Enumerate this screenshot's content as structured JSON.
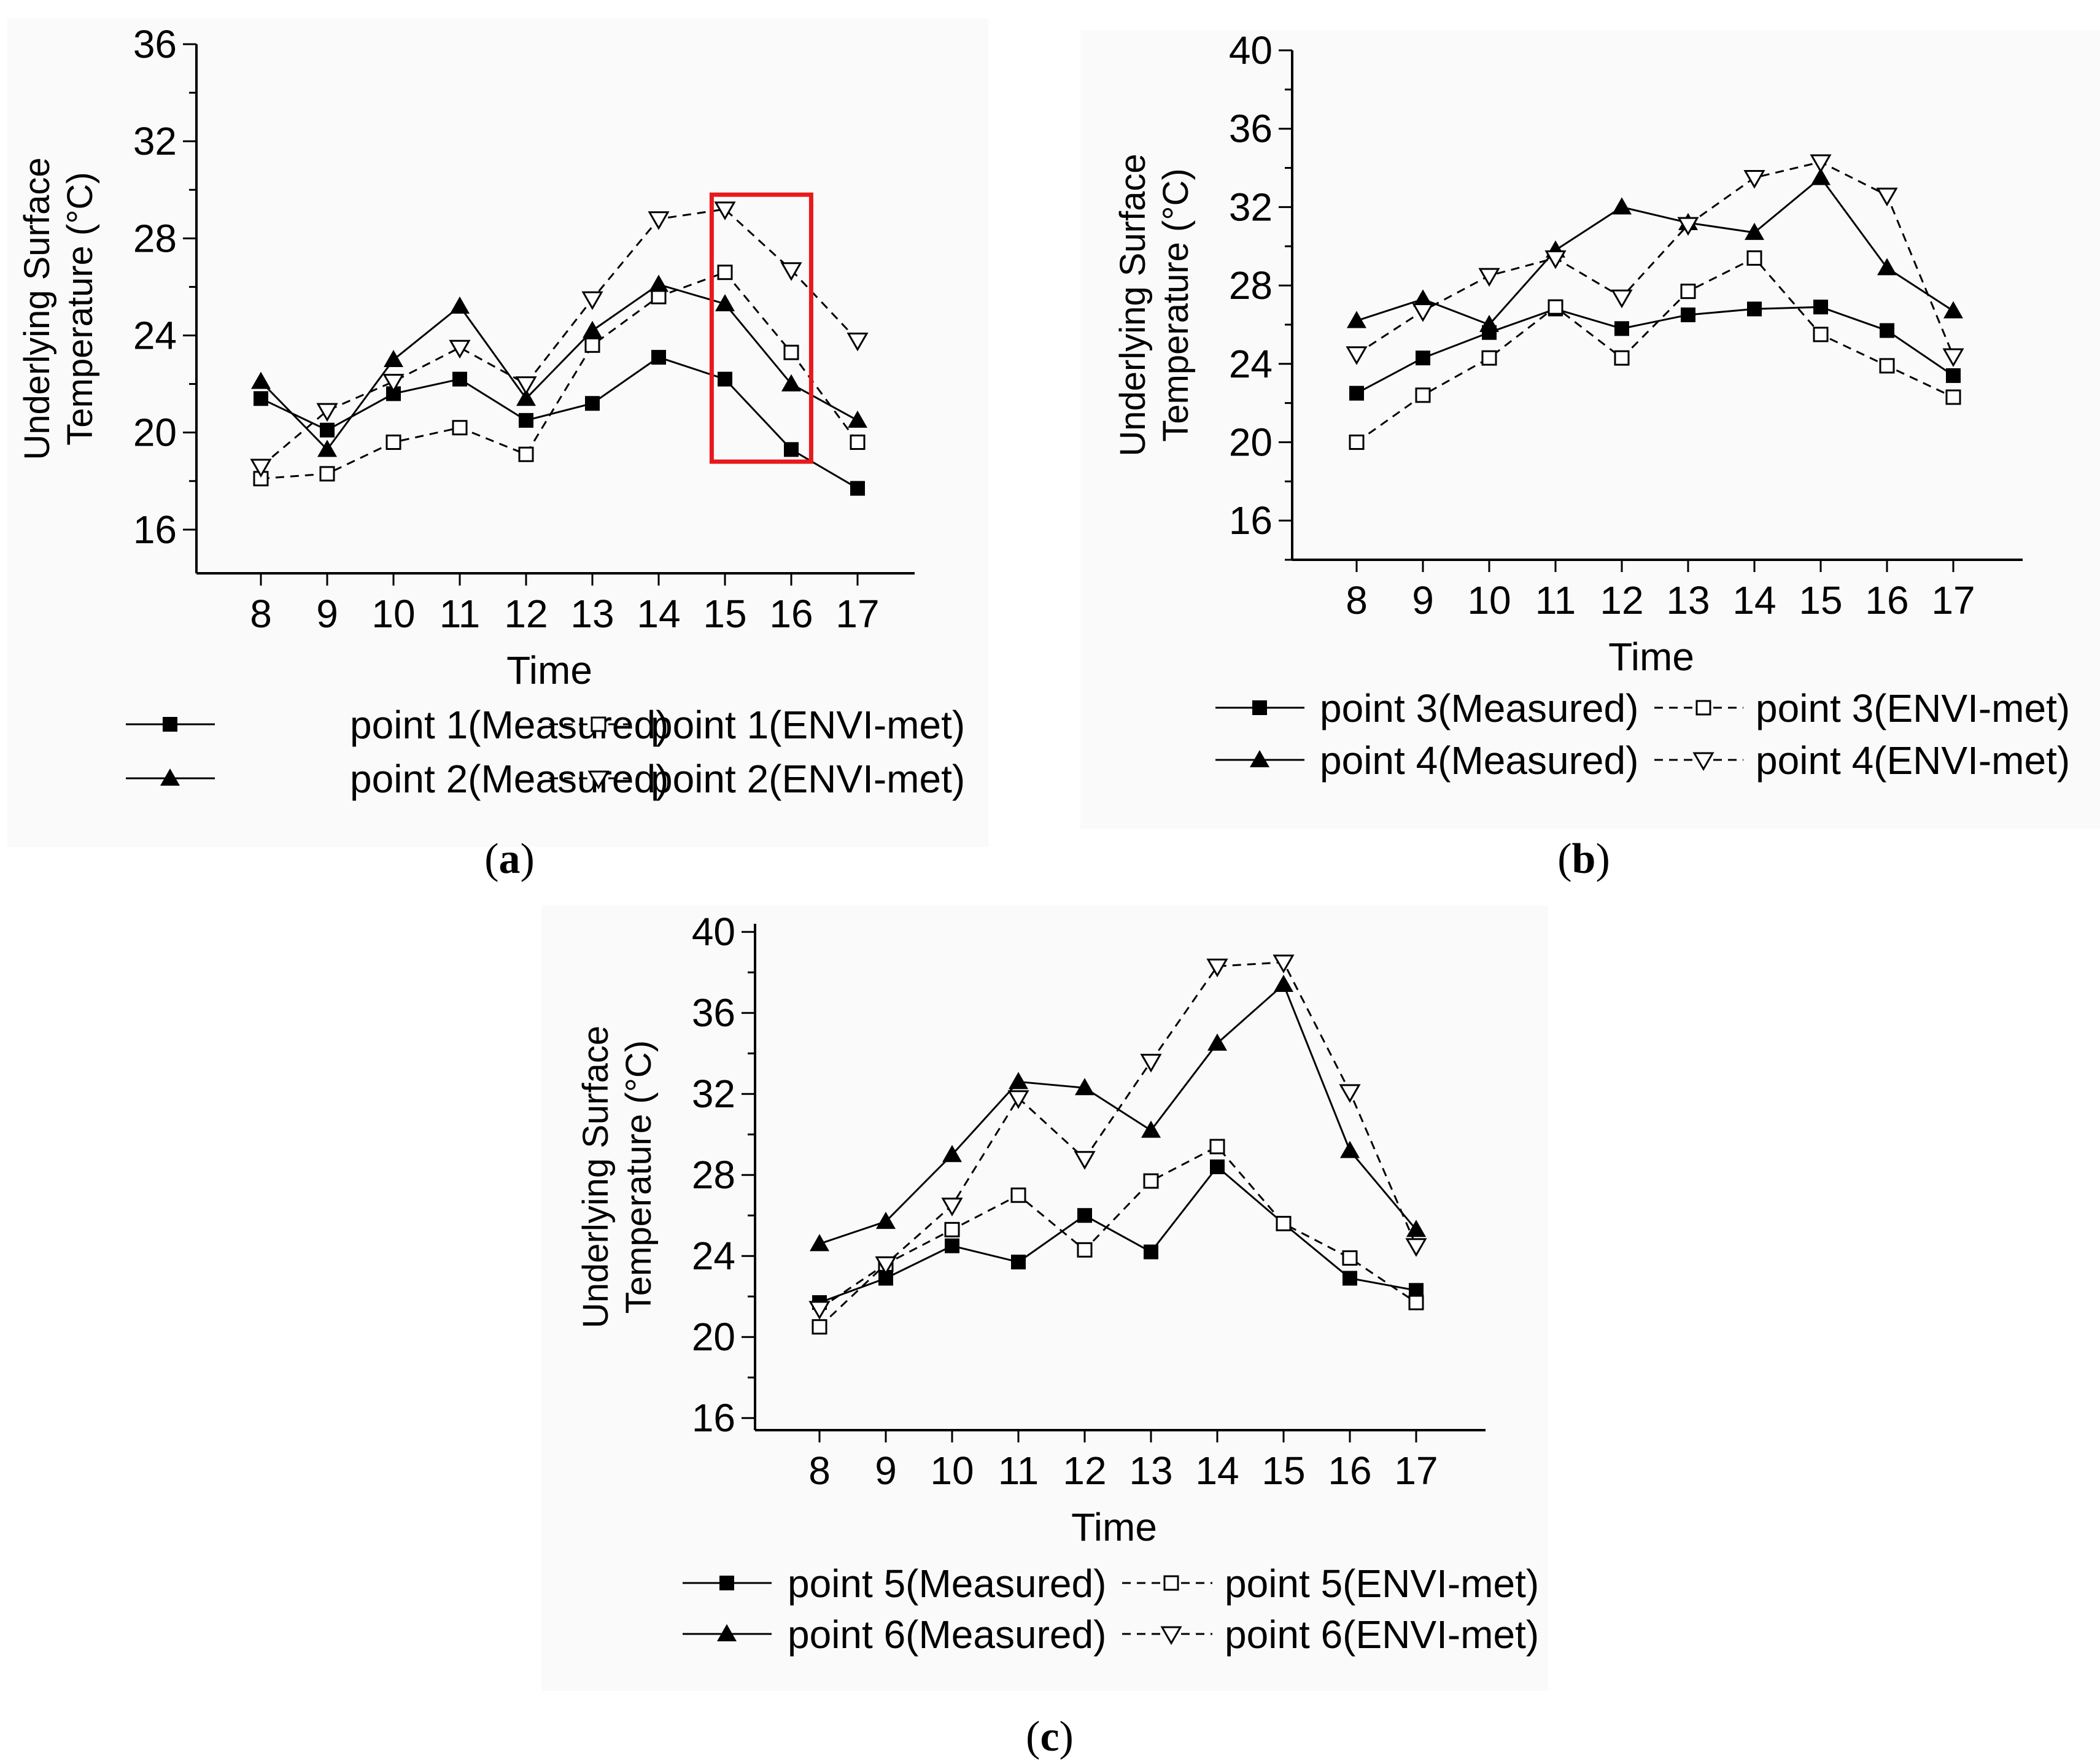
{
  "colors": {
    "line": "#000000",
    "highlight": "#e8191b",
    "panel_bg": "#fafafa"
  },
  "chart_data": [
    {
      "type": "line",
      "panel": "(a)",
      "caption_letter": "a",
      "xlabel": "Time",
      "ylabel_line1": "Underlying Surface",
      "ylabel_line2": "Temperature (°C)",
      "ylim": [
        14.2,
        36
      ],
      "yticks": [
        "16",
        "20",
        "24",
        "28",
        "32",
        "36"
      ],
      "x": [
        8,
        9,
        10,
        11,
        12,
        13,
        14,
        15,
        16,
        17
      ],
      "xticks": [
        "8",
        "9",
        "10",
        "11",
        "12",
        "13",
        "14",
        "15",
        "16",
        "17"
      ],
      "highlight_x_range": [
        14.8,
        16.3
      ],
      "highlight_y_range": [
        18.8,
        29.8
      ],
      "series": [
        {
          "name": "point 1(Measured)",
          "marker": "square-filled",
          "dash": "solid",
          "values": [
            21.4,
            20.1,
            21.6,
            22.2,
            20.5,
            21.2,
            23.1,
            22.2,
            19.3,
            17.7
          ]
        },
        {
          "name": "point 1(ENVI-met)",
          "marker": "square-open",
          "dash": "dashed",
          "values": [
            18.1,
            18.3,
            19.6,
            20.2,
            19.1,
            23.6,
            25.6,
            26.6,
            23.3,
            19.6
          ]
        },
        {
          "name": "point 2(Measured)",
          "marker": "triangle-up-filled",
          "dash": "solid",
          "values": [
            22.1,
            19.3,
            23.0,
            25.2,
            21.4,
            24.2,
            26.1,
            25.3,
            22.0,
            20.5
          ]
        },
        {
          "name": "point 2(ENVI-met)",
          "marker": "triangle-down-open",
          "dash": "dashed",
          "values": [
            18.6,
            20.9,
            22.1,
            23.5,
            22.0,
            25.5,
            28.8,
            29.2,
            26.7,
            23.8
          ]
        }
      ]
    },
    {
      "type": "line",
      "panel": "(b)",
      "caption_letter": "b",
      "xlabel": "Time",
      "ylabel_line1": "Underlying Surface",
      "ylabel_line2": "Temperature (°C)",
      "ylim": [
        14,
        40
      ],
      "yticks": [
        "16",
        "20",
        "24",
        "28",
        "32",
        "36",
        "40"
      ],
      "x": [
        8,
        9,
        10,
        11,
        12,
        13,
        14,
        15,
        16,
        17
      ],
      "xticks": [
        "8",
        "9",
        "10",
        "11",
        "12",
        "13",
        "14",
        "15",
        "16",
        "17"
      ],
      "series": [
        {
          "name": "point 3(Measured)",
          "marker": "square-filled",
          "dash": "solid",
          "values": [
            22.5,
            24.3,
            25.6,
            26.8,
            25.8,
            26.5,
            26.8,
            26.9,
            25.7,
            23.4
          ]
        },
        {
          "name": "point 3(ENVI-met)",
          "marker": "square-open",
          "dash": "dashed",
          "values": [
            20.0,
            22.4,
            24.3,
            26.9,
            24.3,
            27.7,
            29.4,
            25.5,
            23.9,
            22.3
          ]
        },
        {
          "name": "point 4(Measured)",
          "marker": "triangle-up-filled",
          "dash": "solid",
          "values": [
            26.2,
            27.3,
            26.0,
            29.8,
            32.0,
            31.2,
            30.7,
            33.5,
            28.9,
            26.7
          ]
        },
        {
          "name": "point 4(ENVI-met)",
          "marker": "triangle-down-open",
          "dash": "dashed",
          "values": [
            24.5,
            26.7,
            28.5,
            29.4,
            27.4,
            31.1,
            33.5,
            34.3,
            32.6,
            24.4
          ]
        }
      ]
    },
    {
      "type": "line",
      "panel": "(c)",
      "caption_letter": "c",
      "xlabel": "Time",
      "ylabel_line1": "Underlying Surface",
      "ylabel_line2": "Temperature (°C)",
      "ylim": [
        15.4,
        40.4
      ],
      "yticks": [
        "16",
        "20",
        "24",
        "28",
        "32",
        "36",
        "40"
      ],
      "x": [
        8,
        9,
        10,
        11,
        12,
        13,
        14,
        15,
        16,
        17
      ],
      "xticks": [
        "8",
        "9",
        "10",
        "11",
        "12",
        "13",
        "14",
        "15",
        "16",
        "17"
      ],
      "series": [
        {
          "name": "point 5(Measured)",
          "marker": "square-filled",
          "dash": "solid",
          "values": [
            21.7,
            22.9,
            24.5,
            23.7,
            26.0,
            24.2,
            28.4,
            25.6,
            22.9,
            22.3
          ]
        },
        {
          "name": "point 5(ENVI-met)",
          "marker": "square-open",
          "dash": "dashed",
          "values": [
            20.5,
            23.6,
            25.3,
            27.0,
            24.3,
            27.7,
            29.4,
            25.6,
            23.9,
            21.7
          ]
        },
        {
          "name": "point 6(Measured)",
          "marker": "triangle-up-filled",
          "dash": "solid",
          "values": [
            24.6,
            25.7,
            29.0,
            32.6,
            32.3,
            30.2,
            34.5,
            37.4,
            29.2,
            25.3
          ]
        },
        {
          "name": "point 6(ENVI-met)",
          "marker": "triangle-down-open",
          "dash": "dashed",
          "values": [
            21.4,
            23.6,
            26.5,
            31.8,
            28.8,
            33.6,
            38.3,
            38.5,
            32.1,
            24.5
          ]
        }
      ]
    }
  ]
}
